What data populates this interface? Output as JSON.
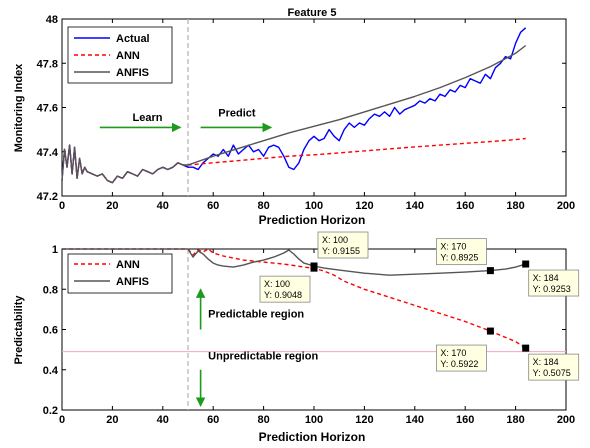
{
  "chart_data": [
    {
      "type": "line",
      "title": "Feature 5",
      "xlabel": "Prediction Horizon",
      "ylabel": "Monitoring Index",
      "xlim": [
        0,
        200
      ],
      "ylim": [
        47.2,
        48
      ],
      "xticks": [
        "0",
        "20",
        "40",
        "60",
        "80",
        "100",
        "120",
        "140",
        "160",
        "180",
        "200"
      ],
      "yticks": [
        "47.2",
        "47.4",
        "47.6",
        "47.8",
        "48"
      ],
      "grid": false,
      "legend_position": "top-left",
      "split_x": 50,
      "series": [
        {
          "name": "Actual",
          "color": "#0000ff",
          "dash": "solid",
          "x": [
            0,
            1,
            2,
            3,
            4,
            5,
            6,
            7,
            8,
            9,
            10,
            12,
            14,
            16,
            18,
            20,
            22,
            24,
            26,
            28,
            30,
            32,
            34,
            36,
            38,
            40,
            42,
            44,
            46,
            48,
            50,
            52,
            54,
            56,
            58,
            60,
            62,
            64,
            66,
            68,
            70,
            72,
            74,
            76,
            78,
            80,
            82,
            84,
            86,
            88,
            90,
            92,
            94,
            96,
            98,
            100,
            102,
            104,
            106,
            108,
            110,
            112,
            114,
            116,
            118,
            120,
            122,
            124,
            126,
            128,
            130,
            132,
            134,
            136,
            138,
            140,
            142,
            144,
            146,
            148,
            150,
            152,
            154,
            156,
            158,
            160,
            162,
            164,
            166,
            168,
            170,
            172,
            174,
            176,
            178,
            180,
            182,
            184
          ],
          "y": [
            47.27,
            47.41,
            47.33,
            47.43,
            47.3,
            47.42,
            47.28,
            47.37,
            47.3,
            47.33,
            47.31,
            47.3,
            47.29,
            47.3,
            47.27,
            47.26,
            47.29,
            47.28,
            47.31,
            47.3,
            47.29,
            47.32,
            47.31,
            47.3,
            47.32,
            47.33,
            47.32,
            47.33,
            47.35,
            47.34,
            47.33,
            47.33,
            47.32,
            47.35,
            47.37,
            47.39,
            47.38,
            47.41,
            47.38,
            47.43,
            47.39,
            47.41,
            47.43,
            47.4,
            47.41,
            47.38,
            47.42,
            47.43,
            47.42,
            47.38,
            47.33,
            47.32,
            47.35,
            47.41,
            47.45,
            47.47,
            47.45,
            47.46,
            47.5,
            47.47,
            47.45,
            47.5,
            47.53,
            47.51,
            47.53,
            47.52,
            47.55,
            47.57,
            47.56,
            47.58,
            47.56,
            47.6,
            47.57,
            47.59,
            47.6,
            47.61,
            47.63,
            47.62,
            47.64,
            47.63,
            47.66,
            47.65,
            47.68,
            47.67,
            47.7,
            47.69,
            47.73,
            47.72,
            47.71,
            47.75,
            47.73,
            47.78,
            47.8,
            47.83,
            47.82,
            47.89,
            47.94,
            47.96
          ]
        },
        {
          "name": "ANN",
          "color": "#ff0000",
          "dash": "dashed",
          "x": [
            0,
            1,
            2,
            3,
            4,
            5,
            6,
            7,
            8,
            9,
            10,
            12,
            14,
            16,
            18,
            20,
            22,
            24,
            26,
            28,
            30,
            32,
            34,
            36,
            38,
            40,
            42,
            44,
            46,
            48,
            50,
            60,
            70,
            80,
            90,
            100,
            110,
            120,
            130,
            140,
            150,
            160,
            170,
            180,
            184
          ],
          "y": [
            47.27,
            47.41,
            47.33,
            47.43,
            47.3,
            47.42,
            47.28,
            47.37,
            47.3,
            47.33,
            47.31,
            47.3,
            47.29,
            47.3,
            47.27,
            47.26,
            47.29,
            47.28,
            47.31,
            47.3,
            47.29,
            47.32,
            47.31,
            47.3,
            47.32,
            47.33,
            47.32,
            47.33,
            47.35,
            47.34,
            47.34,
            47.35,
            47.36,
            47.37,
            47.38,
            47.386,
            47.395,
            47.404,
            47.413,
            47.422,
            47.43,
            47.438,
            47.446,
            47.455,
            47.46
          ]
        },
        {
          "name": "ANFIS",
          "color": "#555555",
          "dash": "solid",
          "x": [
            0,
            1,
            2,
            3,
            4,
            5,
            6,
            7,
            8,
            9,
            10,
            12,
            14,
            16,
            18,
            20,
            22,
            24,
            26,
            28,
            30,
            32,
            34,
            36,
            38,
            40,
            42,
            44,
            46,
            48,
            50,
            60,
            70,
            80,
            90,
            100,
            110,
            120,
            130,
            140,
            150,
            160,
            170,
            180,
            184
          ],
          "y": [
            47.27,
            47.41,
            47.33,
            47.43,
            47.3,
            47.42,
            47.28,
            47.37,
            47.3,
            47.33,
            47.31,
            47.3,
            47.29,
            47.3,
            47.27,
            47.26,
            47.29,
            47.28,
            47.31,
            47.3,
            47.29,
            47.32,
            47.31,
            47.3,
            47.32,
            47.33,
            47.32,
            47.33,
            47.35,
            47.34,
            47.34,
            47.38,
            47.415,
            47.45,
            47.485,
            47.515,
            47.545,
            47.58,
            47.615,
            47.65,
            47.69,
            47.735,
            47.785,
            47.845,
            47.88
          ]
        }
      ],
      "annotations": [
        {
          "text": "Learn",
          "x": 28,
          "y": 47.54,
          "arrow_from": [
            15,
            47.51
          ],
          "arrow_to": [
            47,
            47.51
          ]
        },
        {
          "text": "Predict",
          "x": 62,
          "y": 47.56,
          "arrow_from": [
            55,
            47.51
          ],
          "arrow_to": [
            83,
            47.51
          ]
        }
      ]
    },
    {
      "type": "line",
      "title": "",
      "xlabel": "Prediction Horizon",
      "ylabel": "Predictability",
      "xlim": [
        0,
        200
      ],
      "ylim": [
        0.2,
        1
      ],
      "xticks": [
        "0",
        "20",
        "40",
        "60",
        "80",
        "100",
        "120",
        "140",
        "160",
        "180",
        "200"
      ],
      "yticks": [
        "0.2",
        "0.4",
        "0.6",
        "0.8",
        "1"
      ],
      "grid": false,
      "legend_position": "top-left",
      "split_x": 50,
      "threshold": 0.49,
      "series": [
        {
          "name": "ANN",
          "color": "#ff0000",
          "dash": "dashed",
          "x": [
            0,
            50,
            52,
            54,
            56,
            58,
            60,
            64,
            68,
            72,
            76,
            80,
            84,
            88,
            92,
            96,
            100,
            104,
            108,
            112,
            116,
            120,
            130,
            140,
            150,
            160,
            170,
            180,
            184
          ],
          "y": [
            1,
            1,
            0.97,
            0.995,
            0.985,
            1.0,
            0.98,
            0.965,
            0.955,
            0.945,
            0.94,
            0.935,
            0.93,
            0.925,
            0.918,
            0.91,
            0.9048,
            0.89,
            0.87,
            0.84,
            0.82,
            0.8,
            0.76,
            0.72,
            0.68,
            0.64,
            0.5922,
            0.54,
            0.5075
          ]
        },
        {
          "name": "ANFIS",
          "color": "#555555",
          "dash": "solid",
          "x": [
            0,
            50,
            52,
            54,
            56,
            58,
            60,
            62,
            64,
            68,
            72,
            76,
            80,
            84,
            88,
            90,
            92,
            94,
            96,
            100,
            104,
            110,
            120,
            130,
            140,
            150,
            160,
            170,
            176,
            180,
            184
          ],
          "y": [
            1,
            1,
            0.96,
            0.99,
            0.975,
            0.95,
            0.93,
            0.92,
            0.915,
            0.91,
            0.92,
            0.935,
            0.945,
            0.96,
            0.98,
            0.995,
            0.975,
            0.95,
            0.93,
            0.9155,
            0.905,
            0.895,
            0.88,
            0.87,
            0.875,
            0.88,
            0.885,
            0.8925,
            0.9,
            0.91,
            0.9253
          ]
        }
      ],
      "datatips": [
        {
          "x_label": "X: 100",
          "y_label": "Y: 0.9048",
          "x": 100,
          "y": 0.9048
        },
        {
          "x_label": "X: 100",
          "y_label": "Y: 0.9155",
          "x": 100,
          "y": 0.9155
        },
        {
          "x_label": "X: 170",
          "y_label": "Y: 0.8925",
          "x": 170,
          "y": 0.8925
        },
        {
          "x_label": "X: 184",
          "y_label": "Y: 0.9253",
          "x": 184,
          "y": 0.9253
        },
        {
          "x_label": "X: 170",
          "y_label": "Y: 0.5922",
          "x": 170,
          "y": 0.5922
        },
        {
          "x_label": "X: 184",
          "y_label": "Y: 0.5075",
          "x": 184,
          "y": 0.5075
        }
      ],
      "annotations": [
        {
          "text": "Predictable region",
          "x": 58,
          "y": 0.66,
          "arrow_from": [
            55,
            0.6
          ],
          "arrow_to": [
            55,
            0.8
          ]
        },
        {
          "text": "Unpredictable region",
          "x": 58,
          "y": 0.45,
          "arrow_from": [
            55,
            0.4
          ],
          "arrow_to": [
            55,
            0.22
          ]
        }
      ]
    }
  ]
}
